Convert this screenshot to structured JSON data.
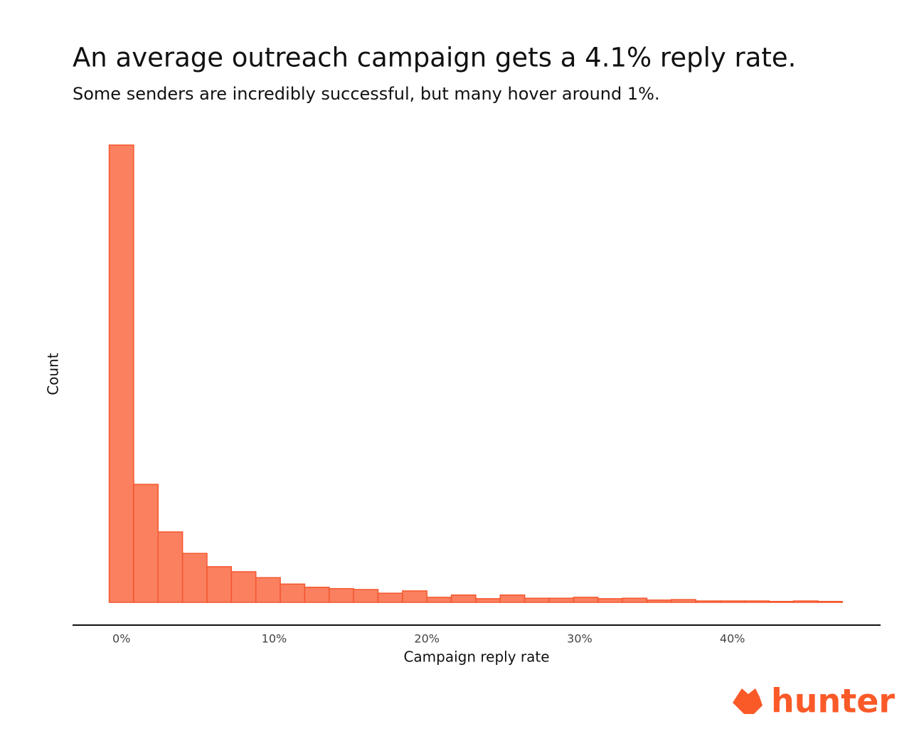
{
  "chart_data": {
    "type": "histogram",
    "title": "An average outreach campaign gets a 4.1% reply rate.",
    "subtitle": "Some senders are incredibly successful, but many hover around 1%.",
    "x_label": "Campaign reply rate",
    "y_label": "Count",
    "bins": [
      -0.8,
      0.8,
      2.4,
      4.0,
      5.6,
      7.2,
      8.8,
      10.4,
      12.0,
      13.6,
      15.2,
      16.8,
      18.4,
      20.0,
      21.6,
      23.2,
      24.8,
      26.4,
      28.0,
      29.6,
      31.2,
      32.8,
      34.4,
      36.0,
      37.6,
      39.2,
      40.8,
      42.4,
      44.0,
      45.6,
      47.2
    ],
    "counts": [
      100,
      25.8,
      15.4,
      10.7,
      7.8,
      6.7,
      5.4,
      4.0,
      3.3,
      3.0,
      2.8,
      2.0,
      2.5,
      1.1,
      1.6,
      0.8,
      1.6,
      0.9,
      0.9,
      1.1,
      0.8,
      0.9,
      0.5,
      0.6,
      0.3,
      0.3,
      0.3,
      0.2,
      0.3,
      0.2
    ],
    "color": "#fa8060",
    "edge_color": "#f4572e",
    "xlim": [
      -3.2,
      49.7
    ],
    "ylim": [
      0,
      100
    ],
    "xticks": [
      {
        "value": 0,
        "label": "0%"
      },
      {
        "value": 10,
        "label": "10%"
      },
      {
        "value": 20,
        "label": "20%"
      },
      {
        "value": 30,
        "label": "30%"
      },
      {
        "value": 40,
        "label": "40%"
      }
    ],
    "logo": "hunter"
  }
}
